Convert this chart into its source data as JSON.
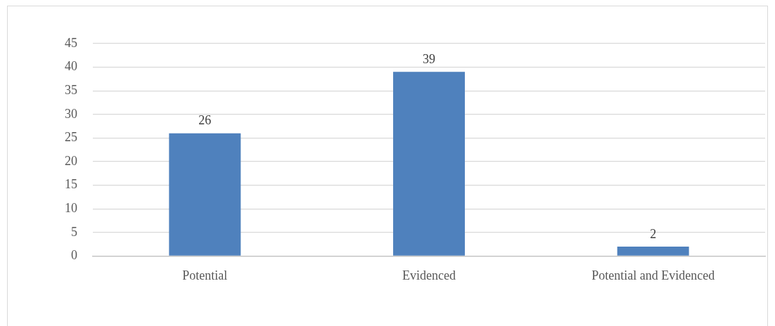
{
  "chart_data": {
    "type": "bar",
    "categories": [
      "Potential",
      "Evidenced",
      "Potential and Evidenced"
    ],
    "values": [
      26,
      39,
      2
    ],
    "color": "#4f81bd",
    "ylim": [
      0,
      45
    ],
    "yticks": [
      0,
      5,
      10,
      15,
      20,
      25,
      30,
      35,
      40,
      45
    ],
    "grid": "y",
    "data_labels": true
  }
}
